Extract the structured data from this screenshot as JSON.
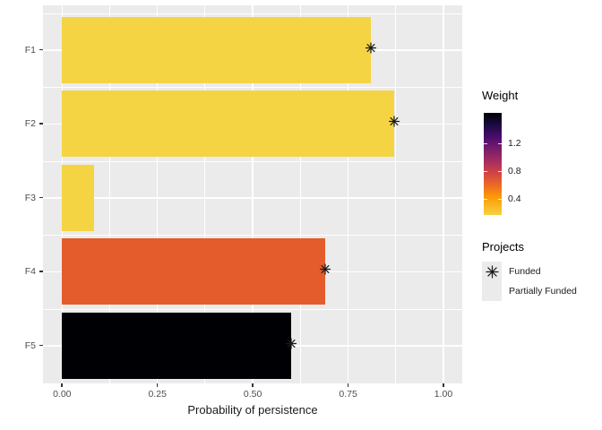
{
  "chart_data": {
    "type": "bar",
    "orientation": "horizontal",
    "title": "",
    "xlabel": "Probability of persistence",
    "ylabel": "",
    "categories": [
      "F1",
      "F2",
      "F3",
      "F4",
      "F5"
    ],
    "values": [
      0.81,
      0.87,
      0.085,
      0.69,
      0.6
    ],
    "bar_colors": [
      "#F5D444",
      "#F5D444",
      "#F5D444",
      "#E45C2C",
      "#000004"
    ],
    "funded_marker_shown": [
      true,
      true,
      false,
      true,
      true
    ],
    "marker_shape": "asterisk",
    "xlim": [
      0,
      1
    ],
    "x_tick_labels": [
      "0.00",
      "0.25",
      "0.50",
      "0.75",
      "1.00"
    ],
    "x_tick_values": [
      0,
      0.25,
      0.5,
      0.75,
      1.0
    ],
    "x_minor_tick_values": [
      0.125,
      0.375,
      0.625,
      0.875
    ],
    "grid": "white major and minor gridlines on grey panel",
    "legend_position": "right",
    "legends": {
      "weight": {
        "title": "Weight",
        "tick_labels": [
          "1.2",
          "0.8",
          "0.4"
        ],
        "tick_fractions_from_top": [
          0.298,
          0.568,
          0.845
        ],
        "gradient_stops": [
          {
            "pos": 0.0,
            "color": "#000004"
          },
          {
            "pos": 0.12,
            "color": "#1B0C42"
          },
          {
            "pos": 0.235,
            "color": "#4B0C6B"
          },
          {
            "pos": 0.353,
            "color": "#781C6D"
          },
          {
            "pos": 0.47,
            "color": "#A52C60"
          },
          {
            "pos": 0.588,
            "color": "#CF4446"
          },
          {
            "pos": 0.706,
            "color": "#ED6925"
          },
          {
            "pos": 0.824,
            "color": "#FB9A06"
          },
          {
            "pos": 1.0,
            "color": "#F7D23F"
          }
        ]
      },
      "projects": {
        "title": "Projects",
        "items": [
          {
            "label": "Funded",
            "marker": "asterisk"
          },
          {
            "label": "Partially Funded",
            "marker": "none"
          }
        ]
      }
    },
    "colors": {
      "panel_bg": "#EBEBEB",
      "grid": "#FFFFFF",
      "axis_text": "#4D4D4D",
      "title_text": "#1A1A1A",
      "tick_mark": "#333333",
      "marker": "#1A1A1A",
      "legend_key_bg": "#EBEBEB"
    }
  }
}
